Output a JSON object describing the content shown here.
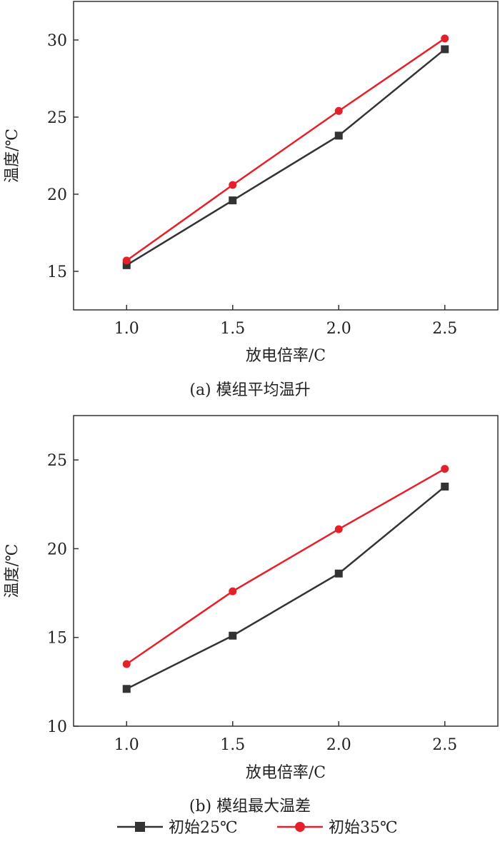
{
  "chart_data": [
    {
      "type": "line",
      "title": "",
      "caption": "(a) 模组平均温升",
      "xlabel": "放电倍率/C",
      "ylabel": "温度/℃",
      "x": [
        1.0,
        1.5,
        2.0,
        2.5
      ],
      "x_tick_labels": [
        "1.0",
        "1.5",
        "2.0",
        "2.5"
      ],
      "xlim": [
        0.75,
        2.75
      ],
      "ylim": [
        12.5,
        32.5
      ],
      "y_ticks": [
        15,
        20,
        25,
        30
      ],
      "grid": false,
      "series": [
        {
          "name": "初始25℃",
          "values": [
            15.4,
            19.6,
            23.8,
            29.4
          ],
          "color": "#333333",
          "marker": "square"
        },
        {
          "name": "初始35℃",
          "values": [
            15.7,
            20.6,
            25.4,
            30.1
          ],
          "color": "#e5202a",
          "marker": "circle"
        }
      ]
    },
    {
      "type": "line",
      "title": "",
      "caption": "(b) 模组最大温差",
      "xlabel": "放电倍率/C",
      "ylabel": "温度/℃",
      "x": [
        1.0,
        1.5,
        2.0,
        2.5
      ],
      "x_tick_labels": [
        "1.0",
        "1.5",
        "2.0",
        "2.5"
      ],
      "xlim": [
        0.75,
        2.75
      ],
      "ylim": [
        10,
        27.5
      ],
      "y_ticks": [
        10,
        15,
        20,
        25
      ],
      "grid": false,
      "series": [
        {
          "name": "初始25℃",
          "values": [
            12.1,
            15.1,
            18.6,
            23.5
          ],
          "color": "#333333",
          "marker": "square"
        },
        {
          "name": "初始35℃",
          "values": [
            13.5,
            17.6,
            21.1,
            24.5
          ],
          "color": "#e5202a",
          "marker": "circle"
        }
      ]
    }
  ],
  "legend": {
    "items": [
      {
        "label": "初始25℃",
        "color": "#333333",
        "marker": "square"
      },
      {
        "label": "初始35℃",
        "color": "#e5202a",
        "marker": "circle"
      }
    ]
  }
}
